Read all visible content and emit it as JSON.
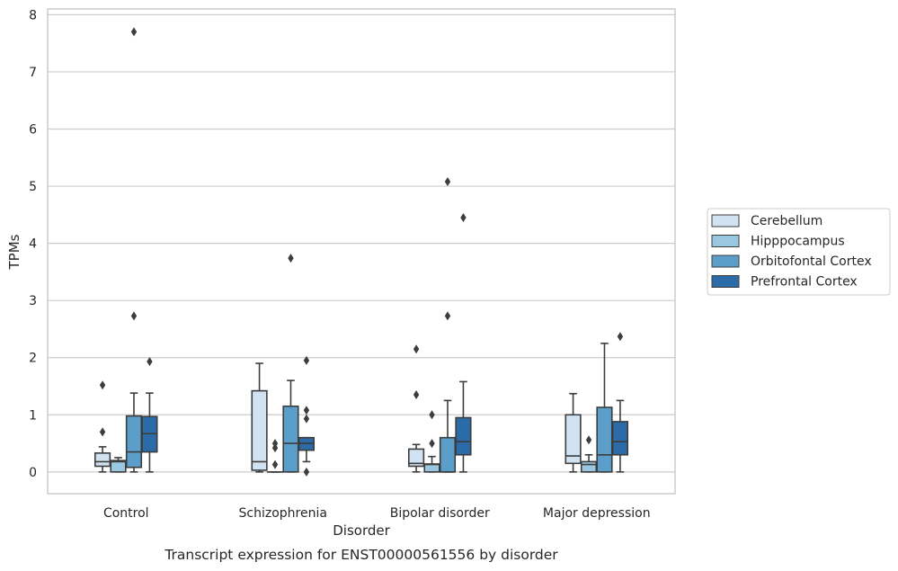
{
  "caption": "Transcript expression for ENST00000561556 by disorder",
  "chart_data": {
    "type": "box",
    "xlabel": "Disorder",
    "ylabel": "TPMs",
    "ylim": [
      -0.38,
      8.1
    ],
    "yticks": [
      0,
      1,
      2,
      3,
      4,
      5,
      6,
      7,
      8
    ],
    "grid": "horizontal",
    "legend_position": "right",
    "categories": [
      "Control",
      "Schizophrenia",
      "Bipolar disorder",
      "Major depression"
    ],
    "series": [
      {
        "name": "Cerebellum",
        "color": "#d1e2f2",
        "boxes": [
          {
            "whisker_low": 0.0,
            "q1": 0.1,
            "median": 0.18,
            "q3": 0.33,
            "whisker_high": 0.44,
            "outliers": [
              0.7,
              1.52
            ]
          },
          {
            "whisker_low": 0.0,
            "q1": 0.03,
            "median": 0.18,
            "q3": 1.42,
            "whisker_high": 1.9,
            "outliers": []
          },
          {
            "whisker_low": 0.0,
            "q1": 0.1,
            "median": 0.15,
            "q3": 0.4,
            "whisker_high": 0.48,
            "outliers": [
              1.35,
              2.15
            ]
          },
          {
            "whisker_low": 0.0,
            "q1": 0.15,
            "median": 0.28,
            "q3": 1.0,
            "whisker_high": 1.37,
            "outliers": []
          }
        ]
      },
      {
        "name": "Hipppocampus",
        "color": "#9ac8e0",
        "boxes": [
          {
            "whisker_low": 0.0,
            "q1": 0.0,
            "median": 0.18,
            "q3": 0.2,
            "whisker_high": 0.25,
            "outliers": []
          },
          {
            "whisker_low": 0.0,
            "q1": 0.0,
            "median": 0.0,
            "q3": 0.0,
            "whisker_high": 0.0,
            "outliers": [
              0.13,
              0.42,
              0.5
            ]
          },
          {
            "whisker_low": 0.0,
            "q1": 0.0,
            "median": 0.13,
            "q3": 0.14,
            "whisker_high": 0.27,
            "outliers": [
              0.5,
              1.0
            ]
          },
          {
            "whisker_low": 0.0,
            "q1": 0.0,
            "median": 0.13,
            "q3": 0.18,
            "whisker_high": 0.3,
            "outliers": [
              0.56
            ]
          }
        ]
      },
      {
        "name": "Orbitofontal Cortex",
        "color": "#5a9ec9",
        "boxes": [
          {
            "whisker_low": 0.0,
            "q1": 0.08,
            "median": 0.35,
            "q3": 0.98,
            "whisker_high": 1.38,
            "outliers": [
              2.73,
              7.7
            ]
          },
          {
            "whisker_low": 0.0,
            "q1": 0.0,
            "median": 0.5,
            "q3": 1.15,
            "whisker_high": 1.6,
            "outliers": [
              3.74
            ]
          },
          {
            "whisker_low": 0.0,
            "q1": 0.0,
            "median": 0.0,
            "q3": 0.6,
            "whisker_high": 1.25,
            "outliers": [
              2.73,
              5.08
            ]
          },
          {
            "whisker_low": 0.0,
            "q1": 0.0,
            "median": 0.3,
            "q3": 1.13,
            "whisker_high": 2.25,
            "outliers": []
          }
        ]
      },
      {
        "name": "Prefrontal Cortex",
        "color": "#2b6ca8",
        "boxes": [
          {
            "whisker_low": 0.0,
            "q1": 0.35,
            "median": 0.67,
            "q3": 0.97,
            "whisker_high": 1.38,
            "outliers": [
              1.93
            ]
          },
          {
            "whisker_low": 0.18,
            "q1": 0.38,
            "median": 0.5,
            "q3": 0.6,
            "whisker_high": 0.6,
            "outliers": [
              0.0,
              0.93,
              1.08,
              1.95
            ]
          },
          {
            "whisker_low": 0.0,
            "q1": 0.3,
            "median": 0.53,
            "q3": 0.95,
            "whisker_high": 1.58,
            "outliers": [
              4.45
            ]
          },
          {
            "whisker_low": 0.0,
            "q1": 0.3,
            "median": 0.53,
            "q3": 0.88,
            "whisker_high": 1.25,
            "outliers": [
              2.37
            ]
          }
        ]
      }
    ]
  }
}
